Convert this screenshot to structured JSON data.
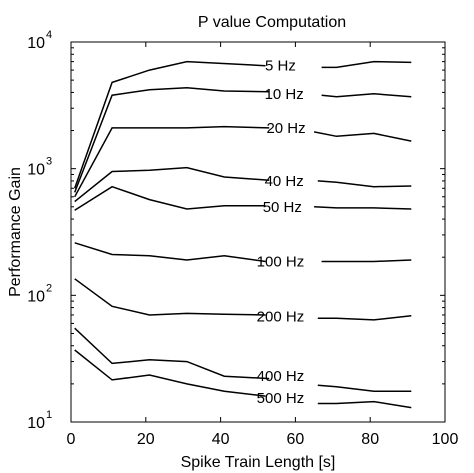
{
  "chart_data": {
    "type": "line",
    "title": "P value Computation",
    "xlabel": "Spike Train Length [s]",
    "ylabel": "Performance Gain",
    "yscale": "log",
    "xlim": [
      0,
      100
    ],
    "ylim": [
      10,
      10000
    ],
    "xticks": [
      0,
      20,
      40,
      60,
      80,
      100
    ],
    "yticks": [
      {
        "value": 10,
        "base": "10",
        "exponent": "1"
      },
      {
        "value": 100,
        "base": "10",
        "exponent": "2"
      },
      {
        "value": 1000,
        "base": "10",
        "exponent": "3"
      },
      {
        "value": 10000,
        "base": "10",
        "exponent": "4"
      }
    ],
    "grid": false,
    "legend": "inline labels",
    "series": [
      {
        "name": "5 Hz",
        "label_x": 56,
        "label_value": 6500,
        "segments": [
          [
            [
              1,
              700
            ],
            [
              11,
              4800
            ],
            [
              21,
              6000
            ],
            [
              31,
              7000
            ],
            [
              52,
              6500
            ]
          ],
          [
            [
              67,
              6300
            ],
            [
              71,
              6300
            ],
            [
              81,
              7000
            ],
            [
              91,
              6900
            ]
          ]
        ]
      },
      {
        "name": "10 Hz",
        "label_x": 57,
        "label_value": 3900,
        "segments": [
          [
            [
              1,
              650
            ],
            [
              11,
              3800
            ],
            [
              21,
              4200
            ],
            [
              31,
              4350
            ],
            [
              41,
              4100
            ],
            [
              53,
              4050
            ]
          ],
          [
            [
              67,
              3800
            ],
            [
              71,
              3700
            ],
            [
              81,
              3900
            ],
            [
              91,
              3700
            ]
          ]
        ]
      },
      {
        "name": "20 Hz",
        "label_x": 57.5,
        "label_value": 2100,
        "segments": [
          [
            [
              1,
              600
            ],
            [
              11,
              2100
            ],
            [
              21,
              2100
            ],
            [
              31,
              2100
            ],
            [
              41,
              2150
            ],
            [
              53,
              2100
            ]
          ],
          [
            [
              65,
              1950
            ],
            [
              71,
              1800
            ],
            [
              81,
              1900
            ],
            [
              91,
              1650
            ]
          ]
        ]
      },
      {
        "name": "40 Hz",
        "label_x": 57,
        "label_value": 800,
        "segments": [
          [
            [
              1,
              550
            ],
            [
              11,
              950
            ],
            [
              21,
              970
            ],
            [
              31,
              1020
            ],
            [
              41,
              860
            ],
            [
              53,
              810
            ]
          ],
          [
            [
              66,
              800
            ],
            [
              71,
              780
            ],
            [
              81,
              720
            ],
            [
              91,
              730
            ]
          ]
        ]
      },
      {
        "name": "50 Hz",
        "label_x": 56.5,
        "label_value": 500,
        "segments": [
          [
            [
              1,
              470
            ],
            [
              11,
              720
            ],
            [
              21,
              570
            ],
            [
              31,
              480
            ],
            [
              41,
              510
            ],
            [
              52,
              510
            ]
          ],
          [
            [
              65,
              500
            ],
            [
              71,
              490
            ],
            [
              81,
              490
            ],
            [
              91,
              480
            ]
          ]
        ]
      },
      {
        "name": "100 Hz",
        "label_x": 56,
        "label_value": 185,
        "segments": [
          [
            [
              1,
              260
            ],
            [
              11,
              210
            ],
            [
              21,
              205
            ],
            [
              31,
              190
            ],
            [
              41,
              205
            ],
            [
              52,
              185
            ]
          ],
          [
            [
              67,
              185
            ],
            [
              71,
              185
            ],
            [
              81,
              185
            ],
            [
              91,
              190
            ]
          ]
        ]
      },
      {
        "name": "200 Hz",
        "label_x": 56,
        "label_value": 68,
        "segments": [
          [
            [
              1,
              135
            ],
            [
              11,
              82
            ],
            [
              21,
              70
            ],
            [
              31,
              72
            ],
            [
              41,
              71
            ],
            [
              52,
              70
            ]
          ],
          [
            [
              66,
              66
            ],
            [
              71,
              66
            ],
            [
              81,
              64
            ],
            [
              91,
              69
            ]
          ]
        ]
      },
      {
        "name": "400 Hz",
        "label_x": 56,
        "label_value": 23,
        "segments": [
          [
            [
              1,
              55
            ],
            [
              11,
              29
            ],
            [
              21,
              31
            ],
            [
              31,
              30
            ],
            [
              41,
              23
            ],
            [
              53,
              22
            ]
          ],
          [
            [
              66,
              19.5
            ],
            [
              71,
              19
            ],
            [
              81,
              17.5
            ],
            [
              91,
              17.5
            ]
          ]
        ]
      },
      {
        "name": "500 Hz",
        "label_x": 56,
        "label_value": 15.5,
        "segments": [
          [
            [
              1,
              37
            ],
            [
              11,
              21.5
            ],
            [
              21,
              23.5
            ],
            [
              31,
              20
            ],
            [
              41,
              17.5
            ],
            [
              52,
              16
            ]
          ],
          [
            [
              66,
              14
            ],
            [
              71,
              14
            ],
            [
              81,
              14.5
            ],
            [
              91,
              13
            ]
          ]
        ]
      }
    ]
  }
}
